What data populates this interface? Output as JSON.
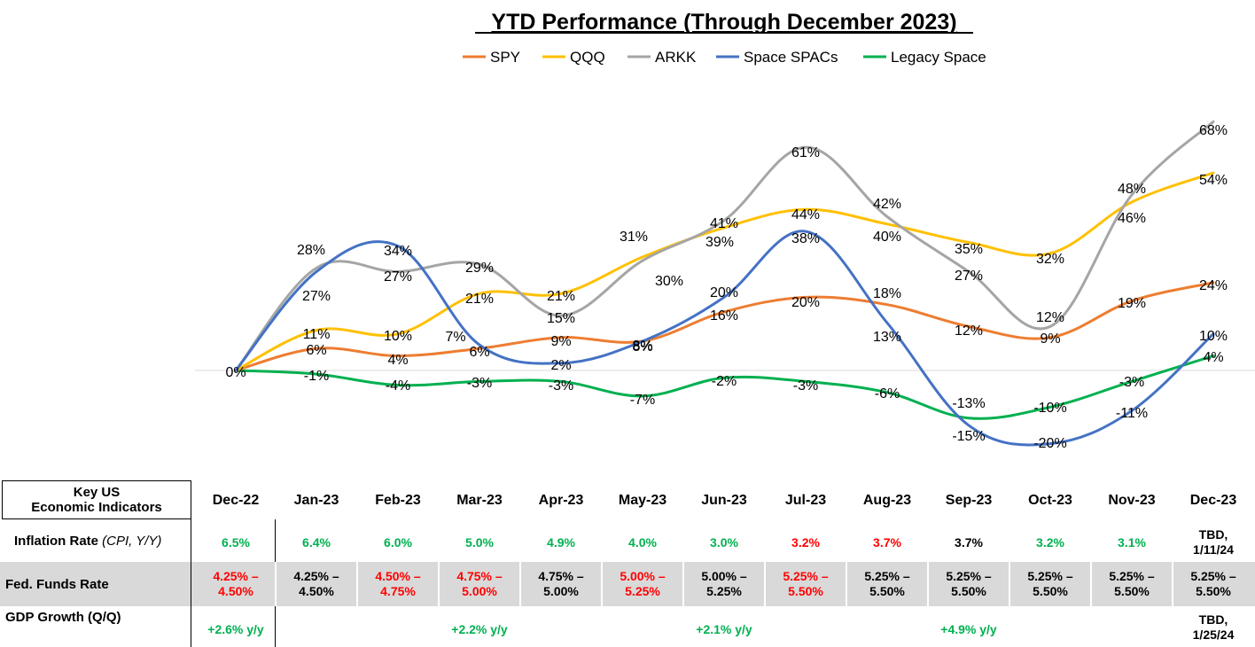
{
  "chart_data": {
    "type": "line",
    "title": "YTD Performance (Through December 2023)",
    "categories": [
      "Dec-22",
      "Jan-23",
      "Feb-23",
      "Mar-23",
      "Apr-23",
      "May-23",
      "Jun-23",
      "Jul-23",
      "Aug-23",
      "Sep-23",
      "Oct-23",
      "Nov-23",
      "Dec-23"
    ],
    "legend_position": "top",
    "grid": false,
    "ylim": [
      -20,
      68
    ],
    "series": [
      {
        "name": "SPY",
        "color": "#ed7d31",
        "values": [
          0,
          6,
          4,
          6,
          9,
          8,
          16,
          20,
          18,
          12,
          9,
          19,
          24
        ],
        "labels": [
          "",
          "6%",
          "4%",
          "6%",
          "9%",
          "8%",
          "16%",
          "20%",
          "18%",
          "12%",
          "9%",
          "19%",
          "24%"
        ]
      },
      {
        "name": "QQQ",
        "color": "#ffc000",
        "values": [
          0,
          11,
          10,
          21,
          21,
          31,
          39,
          44,
          40,
          35,
          32,
          46,
          54
        ],
        "labels": [
          "",
          "11%",
          "10%",
          "21%",
          "21%",
          "31%",
          "39%",
          "44%",
          "40%",
          "35%",
          "32%",
          "46%",
          "54%"
        ]
      },
      {
        "name": "ARKK",
        "color": "#a5a5a5",
        "values": [
          0,
          28,
          27,
          29,
          15,
          30,
          41,
          61,
          42,
          27,
          12,
          48,
          68
        ],
        "labels": [
          "",
          "28%",
          "27%",
          "29%",
          "15%",
          "30%",
          "41%",
          "61%",
          "42%",
          "27%",
          "12%",
          "48%",
          "68%"
        ]
      },
      {
        "name": "Space SPACs",
        "color": "#4472c4",
        "values": [
          0,
          27,
          34,
          7,
          2,
          8,
          20,
          38,
          13,
          -15,
          -20,
          -11,
          10
        ],
        "labels": [
          "0%",
          "27%",
          "34%",
          "7%",
          "2%",
          "8%",
          "20%",
          "38%",
          "13%",
          "-15%",
          "-20%",
          "-11%",
          "10%"
        ]
      },
      {
        "name": "Legacy Space",
        "color": "#00b050",
        "values": [
          0,
          -1,
          -4,
          -3,
          -3,
          -7,
          -2,
          -3,
          -6,
          -13,
          -10,
          -3,
          4
        ],
        "labels": [
          "",
          "-1%",
          "-4%",
          "-3%",
          "-3%",
          "-7%",
          "-2%",
          "-3%",
          "-6%",
          "-13%",
          "-10%",
          "-3%",
          "4%"
        ]
      }
    ]
  },
  "table": {
    "header_label": [
      "Key US",
      "Economic Indicators"
    ],
    "inflation": {
      "label": "Inflation Rate ",
      "label_italic": "(CPI, Y/Y)",
      "values": [
        "6.5%",
        "6.4%",
        "6.0%",
        "5.0%",
        "4.9%",
        "4.0%",
        "3.0%",
        "3.2%",
        "3.7%",
        "3.7%",
        "3.2%",
        "3.1%",
        "TBD,\n1/11/24"
      ],
      "colors": [
        "#00b050",
        "#00b050",
        "#00b050",
        "#00b050",
        "#00b050",
        "#00b050",
        "#00b050",
        "#ff0000",
        "#ff0000",
        "#000000",
        "#00b050",
        "#00b050",
        "#000000"
      ]
    },
    "fed": {
      "label": "Fed. Funds Rate",
      "values": [
        "4.25% –\n4.50%",
        "4.25% –\n4.50%",
        "4.50% –\n4.75%",
        "4.75% –\n5.00%",
        "4.75% –\n5.00%",
        "5.00% –\n5.25%",
        "5.00% –\n5.25%",
        "5.25% –\n5.50%",
        "5.25% –\n5.50%",
        "5.25% –\n5.50%",
        "5.25% –\n5.50%",
        "5.25% –\n5.50%",
        "5.25% –\n5.50%"
      ],
      "colors": [
        "#ff0000",
        "#000000",
        "#ff0000",
        "#ff0000",
        "#000000",
        "#ff0000",
        "#000000",
        "#ff0000",
        "#000000",
        "#000000",
        "#000000",
        "#000000",
        "#000000"
      ]
    },
    "gdp": {
      "label": "GDP Growth (Q/Q)",
      "entries": [
        {
          "col": 0,
          "text": "+2.6% y/y",
          "color": "#00b050"
        },
        {
          "col": 3,
          "text": "+2.2% y/y",
          "color": "#00b050"
        },
        {
          "col": 6,
          "text": "+2.1% y/y",
          "color": "#00b050"
        },
        {
          "col": 9,
          "text": "+4.9% y/y",
          "color": "#00b050"
        },
        {
          "col": 12,
          "text": "TBD,\n1/25/24",
          "color": "#000000"
        }
      ]
    }
  }
}
